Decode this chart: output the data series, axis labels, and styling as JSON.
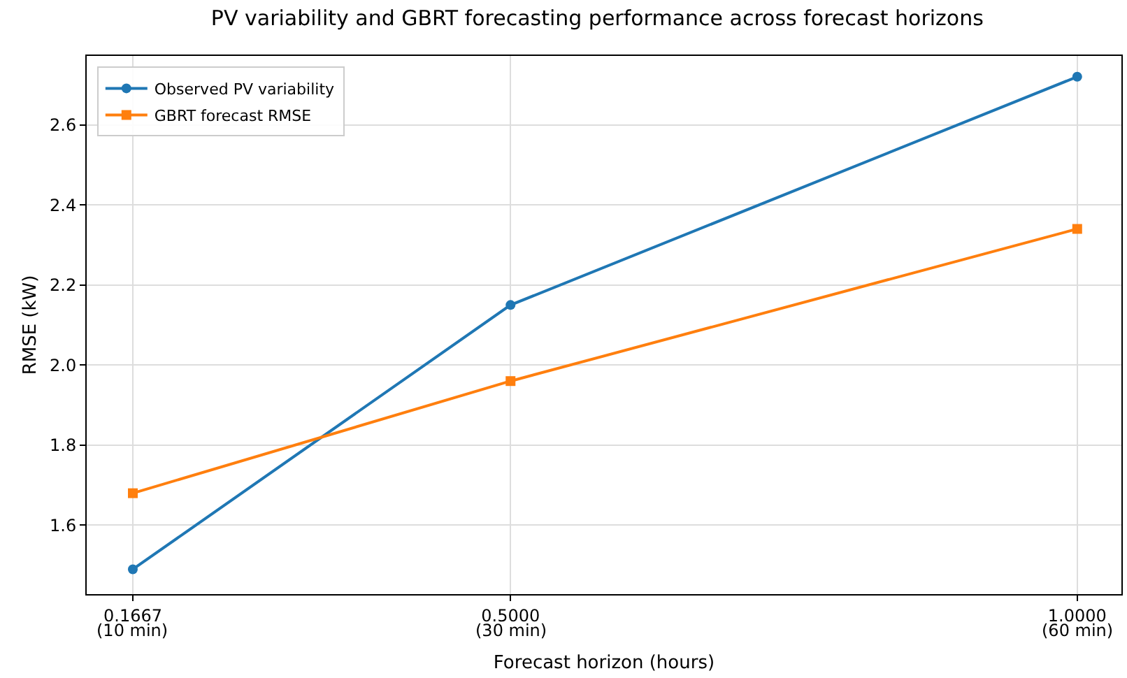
{
  "chart_data": {
    "type": "line",
    "title": "PV variability and GBRT forecasting performance across forecast horizons",
    "xlabel": "Forecast horizon (hours)",
    "ylabel": "RMSE (kW)",
    "x": [
      0.1667,
      0.5,
      1.0
    ],
    "series": [
      {
        "name": "Observed PV variability",
        "color": "#1f77b4",
        "marker": "circle",
        "values": [
          1.49,
          2.15,
          2.72
        ]
      },
      {
        "name": "GBRT forecast RMSE",
        "color": "#ff7f0e",
        "marker": "square",
        "values": [
          1.68,
          1.96,
          2.34
        ]
      }
    ],
    "xlim": [
      0.126,
      1.039
    ],
    "xticks": [
      0.1667,
      {
        "value": 0.5,
        "label": "0.5000"
      },
      {
        "value": 1.0,
        "label": "1.0000"
      }
    ],
    "annotations": [
      "(10 min)",
      "(30 min)",
      "(60 min)"
    ],
    "ylim": [
      1.428,
      2.772
    ],
    "yticks": [
      {
        "value": 1.6,
        "label": "1.6"
      },
      {
        "value": 1.8,
        "label": "1.8"
      },
      {
        "value": 2.0,
        "label": "2.0"
      },
      {
        "value": 2.2,
        "label": "2.2"
      },
      {
        "value": 2.4,
        "label": "2.4"
      },
      {
        "value": 2.6,
        "label": "2.6"
      }
    ],
    "grid": true,
    "legend": "top left",
    "line_style": "solid"
  }
}
